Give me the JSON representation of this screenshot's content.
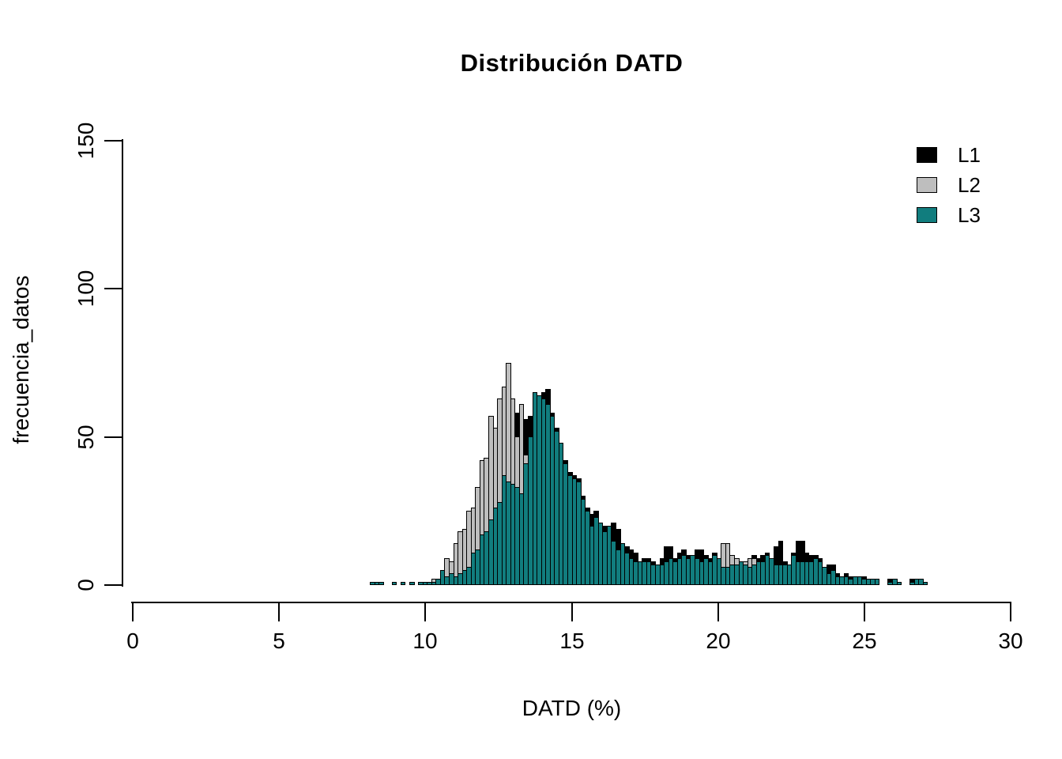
{
  "title": "Distribución DATD",
  "xlabel": "DATD (%)",
  "ylabel": "frecuencia_datos",
  "legend": [
    {
      "label": "L1",
      "color": "#000000"
    },
    {
      "label": "L2",
      "color": "#bebebe"
    },
    {
      "label": "L3",
      "color": "#117d7e"
    }
  ],
  "colors": {
    "background": "#ffffff",
    "axis": "#000000",
    "bar_border": "#000000"
  },
  "chart_data": {
    "type": "bar",
    "subtype": "overlaid-histogram",
    "title": "Distribución DATD",
    "xlabel": "DATD (%)",
    "ylabel": "frecuencia_datos",
    "xlim": [
      0,
      30
    ],
    "ylim": [
      0,
      150
    ],
    "x_ticks": [
      0,
      5,
      10,
      15,
      20,
      25,
      30
    ],
    "y_ticks": [
      0,
      50,
      100,
      150
    ],
    "grid": false,
    "legend_position": "topright",
    "bin_start": 8.1,
    "bin_width": 0.15,
    "data_range": [
      8.1,
      27.15
    ],
    "series": [
      {
        "name": "L1",
        "color": "#000000",
        "values": [
          0,
          1,
          0,
          0,
          0,
          0,
          0,
          0,
          0,
          1,
          0,
          0,
          1,
          0,
          1,
          2,
          3,
          4,
          4,
          6,
          8,
          9,
          12,
          13,
          16,
          20,
          22,
          28,
          31,
          36,
          41,
          43,
          46,
          58,
          45,
          56,
          57,
          64,
          64,
          65,
          66,
          58,
          53,
          48,
          42,
          38,
          37,
          36,
          30,
          26,
          24,
          25,
          21,
          20,
          20,
          21,
          19,
          14,
          13,
          12,
          11,
          8,
          9,
          9,
          8,
          7,
          9,
          13,
          13,
          9,
          11,
          12,
          10,
          10,
          12,
          12,
          10,
          9,
          11,
          9,
          7,
          7,
          8,
          8,
          8,
          7,
          7,
          10,
          9,
          10,
          11,
          9,
          13,
          15,
          8,
          7,
          11,
          15,
          15,
          11,
          10,
          10,
          9,
          6,
          7,
          7,
          4,
          3,
          4,
          3,
          3,
          3,
          3,
          2,
          2,
          2,
          0,
          0,
          2,
          2,
          1,
          0,
          0,
          2,
          2,
          2,
          1
        ]
      },
      {
        "name": "L2",
        "color": "#bebebe",
        "values": [
          0,
          1,
          0,
          0,
          0,
          1,
          0,
          0,
          0,
          0,
          0,
          0,
          1,
          1,
          2,
          2,
          3,
          9,
          8,
          14,
          18,
          19,
          25,
          26,
          33,
          42,
          43,
          57,
          53,
          63,
          67,
          75,
          63,
          50,
          61,
          44,
          38,
          35,
          30,
          28,
          25,
          22,
          18,
          14,
          12,
          10,
          9,
          8,
          7,
          6,
          5,
          5,
          4,
          4,
          3,
          3,
          3,
          2,
          2,
          2,
          4,
          5,
          3,
          2,
          5,
          2,
          2,
          2,
          3,
          2,
          2,
          3,
          2,
          2,
          2,
          3,
          2,
          2,
          2,
          2,
          14,
          14,
          10,
          9,
          6,
          8,
          9,
          9,
          4,
          3,
          3,
          2,
          2,
          2,
          2,
          2,
          2,
          2,
          3,
          2,
          2,
          2,
          2,
          1,
          1,
          1,
          1,
          1,
          1,
          0,
          1,
          0,
          1,
          0,
          1,
          0,
          0,
          0,
          1,
          0,
          0,
          0,
          0,
          0,
          1,
          0,
          0
        ]
      },
      {
        "name": "L3",
        "color": "#117d7e",
        "values": [
          1,
          1,
          1,
          0,
          0,
          1,
          0,
          1,
          0,
          1,
          0,
          1,
          1,
          1,
          1,
          2,
          5,
          3,
          4,
          3,
          4,
          5,
          6,
          11,
          12,
          17,
          18,
          22,
          26,
          28,
          37,
          35,
          34,
          33,
          31,
          41,
          50,
          65,
          64,
          63,
          61,
          57,
          52,
          48,
          41,
          37,
          36,
          35,
          29,
          25,
          20,
          23,
          21,
          18,
          20,
          15,
          12,
          14,
          11,
          9,
          8,
          8,
          8,
          8,
          7,
          7,
          7,
          8,
          9,
          8,
          9,
          10,
          9,
          10,
          9,
          8,
          9,
          8,
          10,
          9,
          6,
          6,
          7,
          7,
          8,
          7,
          6,
          7,
          8,
          8,
          10,
          9,
          7,
          7,
          7,
          7,
          10,
          8,
          8,
          8,
          8,
          9,
          8,
          6,
          4,
          5,
          3,
          3,
          3,
          2,
          3,
          3,
          2,
          2,
          2,
          2,
          0,
          0,
          1,
          2,
          1,
          0,
          0,
          1,
          2,
          2,
          1
        ]
      }
    ]
  }
}
